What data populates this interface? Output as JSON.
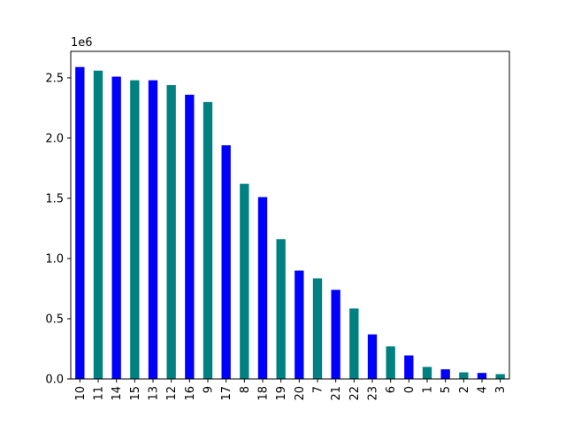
{
  "chart_data": {
    "type": "bar",
    "categories": [
      "10",
      "11",
      "14",
      "15",
      "13",
      "12",
      "16",
      "9",
      "17",
      "8",
      "18",
      "19",
      "20",
      "7",
      "21",
      "22",
      "23",
      "6",
      "0",
      "1",
      "5",
      "2",
      "4",
      "3"
    ],
    "values": [
      2590000,
      2560000,
      2510000,
      2480000,
      2480000,
      2440000,
      2360000,
      2300000,
      1940000,
      1620000,
      1510000,
      1160000,
      900000,
      835000,
      740000,
      585000,
      370000,
      270000,
      195000,
      100000,
      80000,
      55000,
      50000,
      40000
    ],
    "colors": [
      "#0000ff",
      "#008080"
    ],
    "ylim": [
      0,
      2720000
    ],
    "yticks": [
      0,
      500000,
      1000000,
      1500000,
      2000000,
      2500000
    ],
    "ytick_labels": [
      "0.0",
      "0.5",
      "1.0",
      "1.5",
      "2.0",
      "2.5"
    ],
    "y_offset_label": "1e6",
    "title": "",
    "xlabel": "",
    "ylabel": "",
    "grid": false,
    "legend": false
  }
}
